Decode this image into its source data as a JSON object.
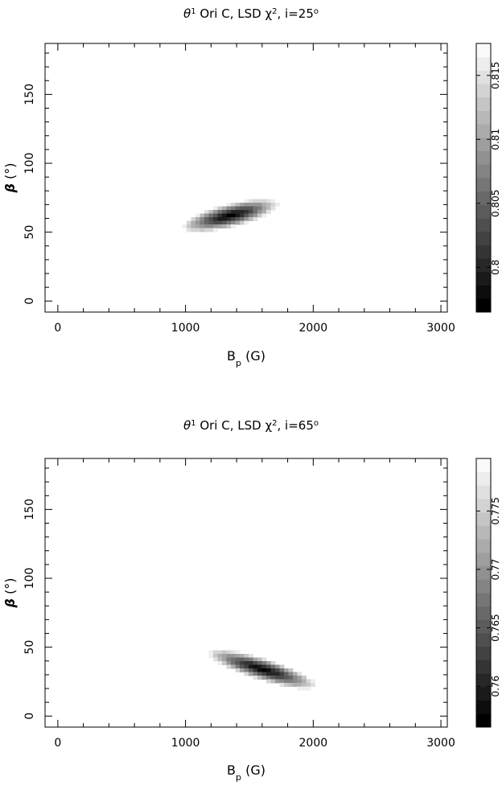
{
  "chart_data": [
    {
      "type": "heatmap",
      "title": {
        "pre": "θ",
        "sup1": "1",
        "mid": " Ori C, LSD χ",
        "sup2": "2",
        "post": ", i=25",
        "deg": "o"
      },
      "xlabel": {
        "main": "B",
        "sub": "p",
        "unit": " (G)"
      },
      "ylabel": {
        "main": "β",
        "unit": " (°)"
      },
      "xlim": [
        -100,
        3050
      ],
      "ylim": [
        -8,
        187
      ],
      "xticks": [
        "0",
        "1000",
        "2000",
        "3000"
      ],
      "yticks": [
        "0",
        "50",
        "100",
        "150"
      ],
      "xtick_values": [
        0,
        1000,
        2000,
        3000
      ],
      "ytick_values": [
        0,
        50,
        100,
        150
      ],
      "colorbar": {
        "range": [
          0.7965,
          0.8175
        ],
        "ticks": [
          "0.8",
          "0.805",
          "0.81",
          "0.815"
        ],
        "tick_values": [
          0.8,
          0.805,
          0.81,
          0.815
        ],
        "levels": 20
      },
      "minimum": {
        "Bp": 1350,
        "beta": 62
      },
      "contour": {
        "minimum_value": 0.7965,
        "base_value": 0.8175,
        "ellipse_semi_major_G": 370,
        "ellipse_semi_minor_deg": 8.5,
        "tilt_deg_per_G": 0.022
      }
    },
    {
      "type": "heatmap",
      "title": {
        "pre": "θ",
        "sup1": "1",
        "mid": " Ori C, LSD χ",
        "sup2": "2",
        "post": ", i=65",
        "deg": "o"
      },
      "xlabel": {
        "main": "B",
        "sub": "p",
        "unit": " (G)"
      },
      "ylabel": {
        "main": "β",
        "unit": " (°)"
      },
      "xlim": [
        -100,
        3050
      ],
      "ylim": [
        -8,
        187
      ],
      "xticks": [
        "0",
        "1000",
        "2000",
        "3000"
      ],
      "yticks": [
        "0",
        "50",
        "100",
        "150"
      ],
      "xtick_values": [
        0,
        1000,
        2000,
        3000
      ],
      "ytick_values": [
        0,
        50,
        100,
        150
      ],
      "colorbar": {
        "range": [
          0.7565,
          0.7795
        ],
        "ticks": [
          "0.76",
          "0.765",
          "0.77",
          "0.775"
        ],
        "tick_values": [
          0.76,
          0.765,
          0.77,
          0.775
        ],
        "levels": 20
      },
      "minimum": {
        "Bp": 1600,
        "beta": 34
      },
      "contour": {
        "minimum_value": 0.7565,
        "base_value": 0.7795,
        "ellipse_semi_major_G": 420,
        "ellipse_semi_minor_deg": 8.0,
        "tilt_deg_per_G": -0.028
      }
    }
  ]
}
